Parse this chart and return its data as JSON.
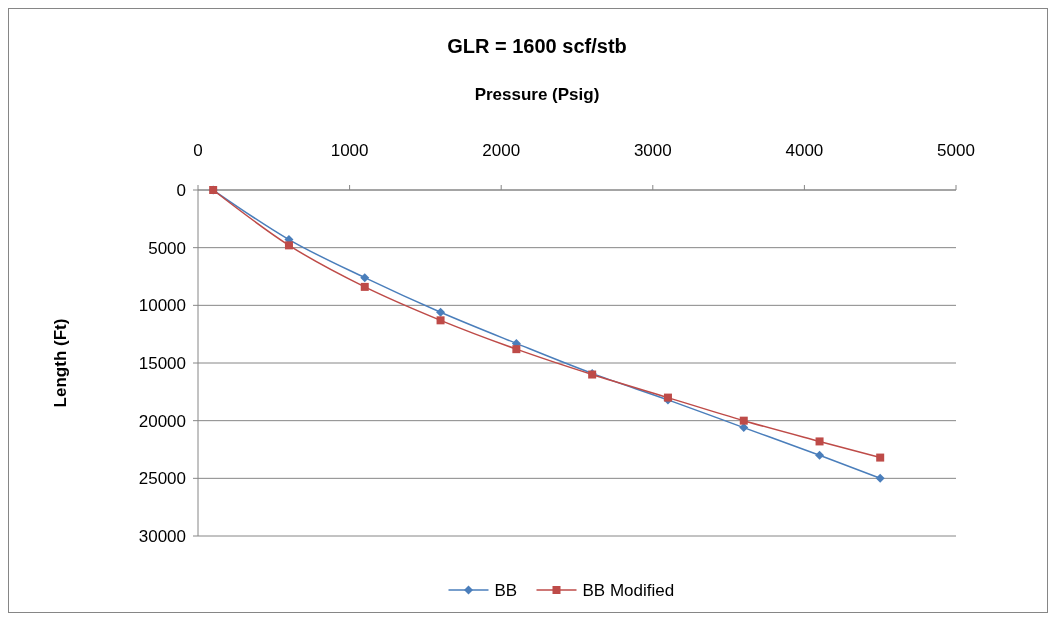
{
  "chart_data": {
    "type": "line",
    "title": "GLR = 1600 scf/stb",
    "xlabel": "Pressure (Psig)",
    "ylabel": "Length (Ft)",
    "xlim": [
      0,
      5000
    ],
    "xticks": [
      0,
      1000,
      2000,
      3000,
      4000,
      5000
    ],
    "ylim": [
      30000,
      0
    ],
    "yticks": [
      0,
      5000,
      10000,
      15000,
      20000,
      25000,
      30000
    ],
    "grid": "y",
    "legend": "bottom",
    "line_style": "solid",
    "series": [
      {
        "name": "BB",
        "color": "#4a7ebb",
        "marker": "diamond",
        "x": [
          100,
          600,
          1100,
          1600,
          2100,
          2600,
          3100,
          3600,
          4100,
          4500
        ],
        "values": [
          0,
          4300,
          7600,
          10600,
          13300,
          15900,
          18200,
          20600,
          23000,
          25000
        ]
      },
      {
        "name": "BB Modified",
        "color": "#be4b48",
        "marker": "square",
        "x": [
          100,
          600,
          1100,
          1600,
          2100,
          2600,
          3100,
          3600,
          4100,
          4500
        ],
        "values": [
          0,
          4800,
          8400,
          11300,
          13800,
          16000,
          18000,
          20000,
          21800,
          23200
        ]
      }
    ]
  }
}
